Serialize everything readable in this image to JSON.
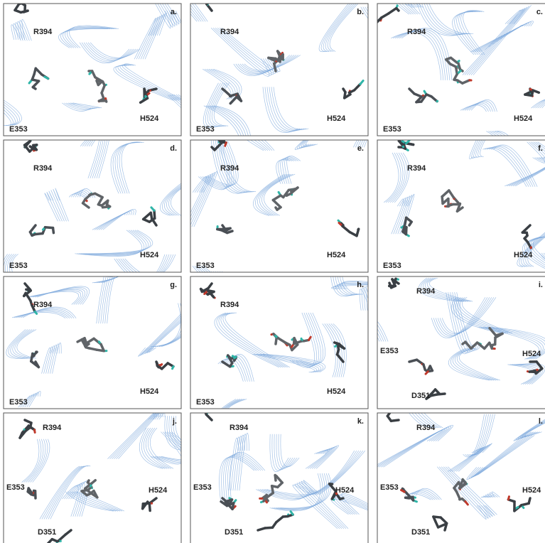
{
  "panels": [
    {
      "letter": "a.",
      "labels": [
        "R394",
        "E353",
        "H524"
      ]
    },
    {
      "letter": "b.",
      "labels": [
        "R394",
        "E353",
        "H524"
      ]
    },
    {
      "letter": "c.",
      "labels": [
        "R394",
        "E353",
        "H524"
      ]
    },
    {
      "letter": "d.",
      "labels": [
        "R394",
        "E353",
        "H524"
      ]
    },
    {
      "letter": "e.",
      "labels": [
        "R394",
        "E353",
        "H524"
      ]
    },
    {
      "letter": "f.",
      "labels": [
        "R394",
        "E353",
        "H524"
      ]
    },
    {
      "letter": "g.",
      "labels": [
        "R394",
        "E353",
        "H524"
      ]
    },
    {
      "letter": "h.",
      "labels": [
        "R394",
        "E353",
        "H524"
      ]
    },
    {
      "letter": "i.",
      "labels": [
        "R394",
        "E353",
        "H524",
        "D351"
      ]
    },
    {
      "letter": "j.",
      "labels": [
        "R394",
        "E353",
        "H524",
        "D351"
      ]
    },
    {
      "letter": "k.",
      "labels": [
        "R394",
        "E353",
        "H524",
        "D351"
      ]
    },
    {
      "letter": "l.",
      "labels": [
        "R394",
        "E353",
        "H524",
        "D351"
      ]
    }
  ]
}
